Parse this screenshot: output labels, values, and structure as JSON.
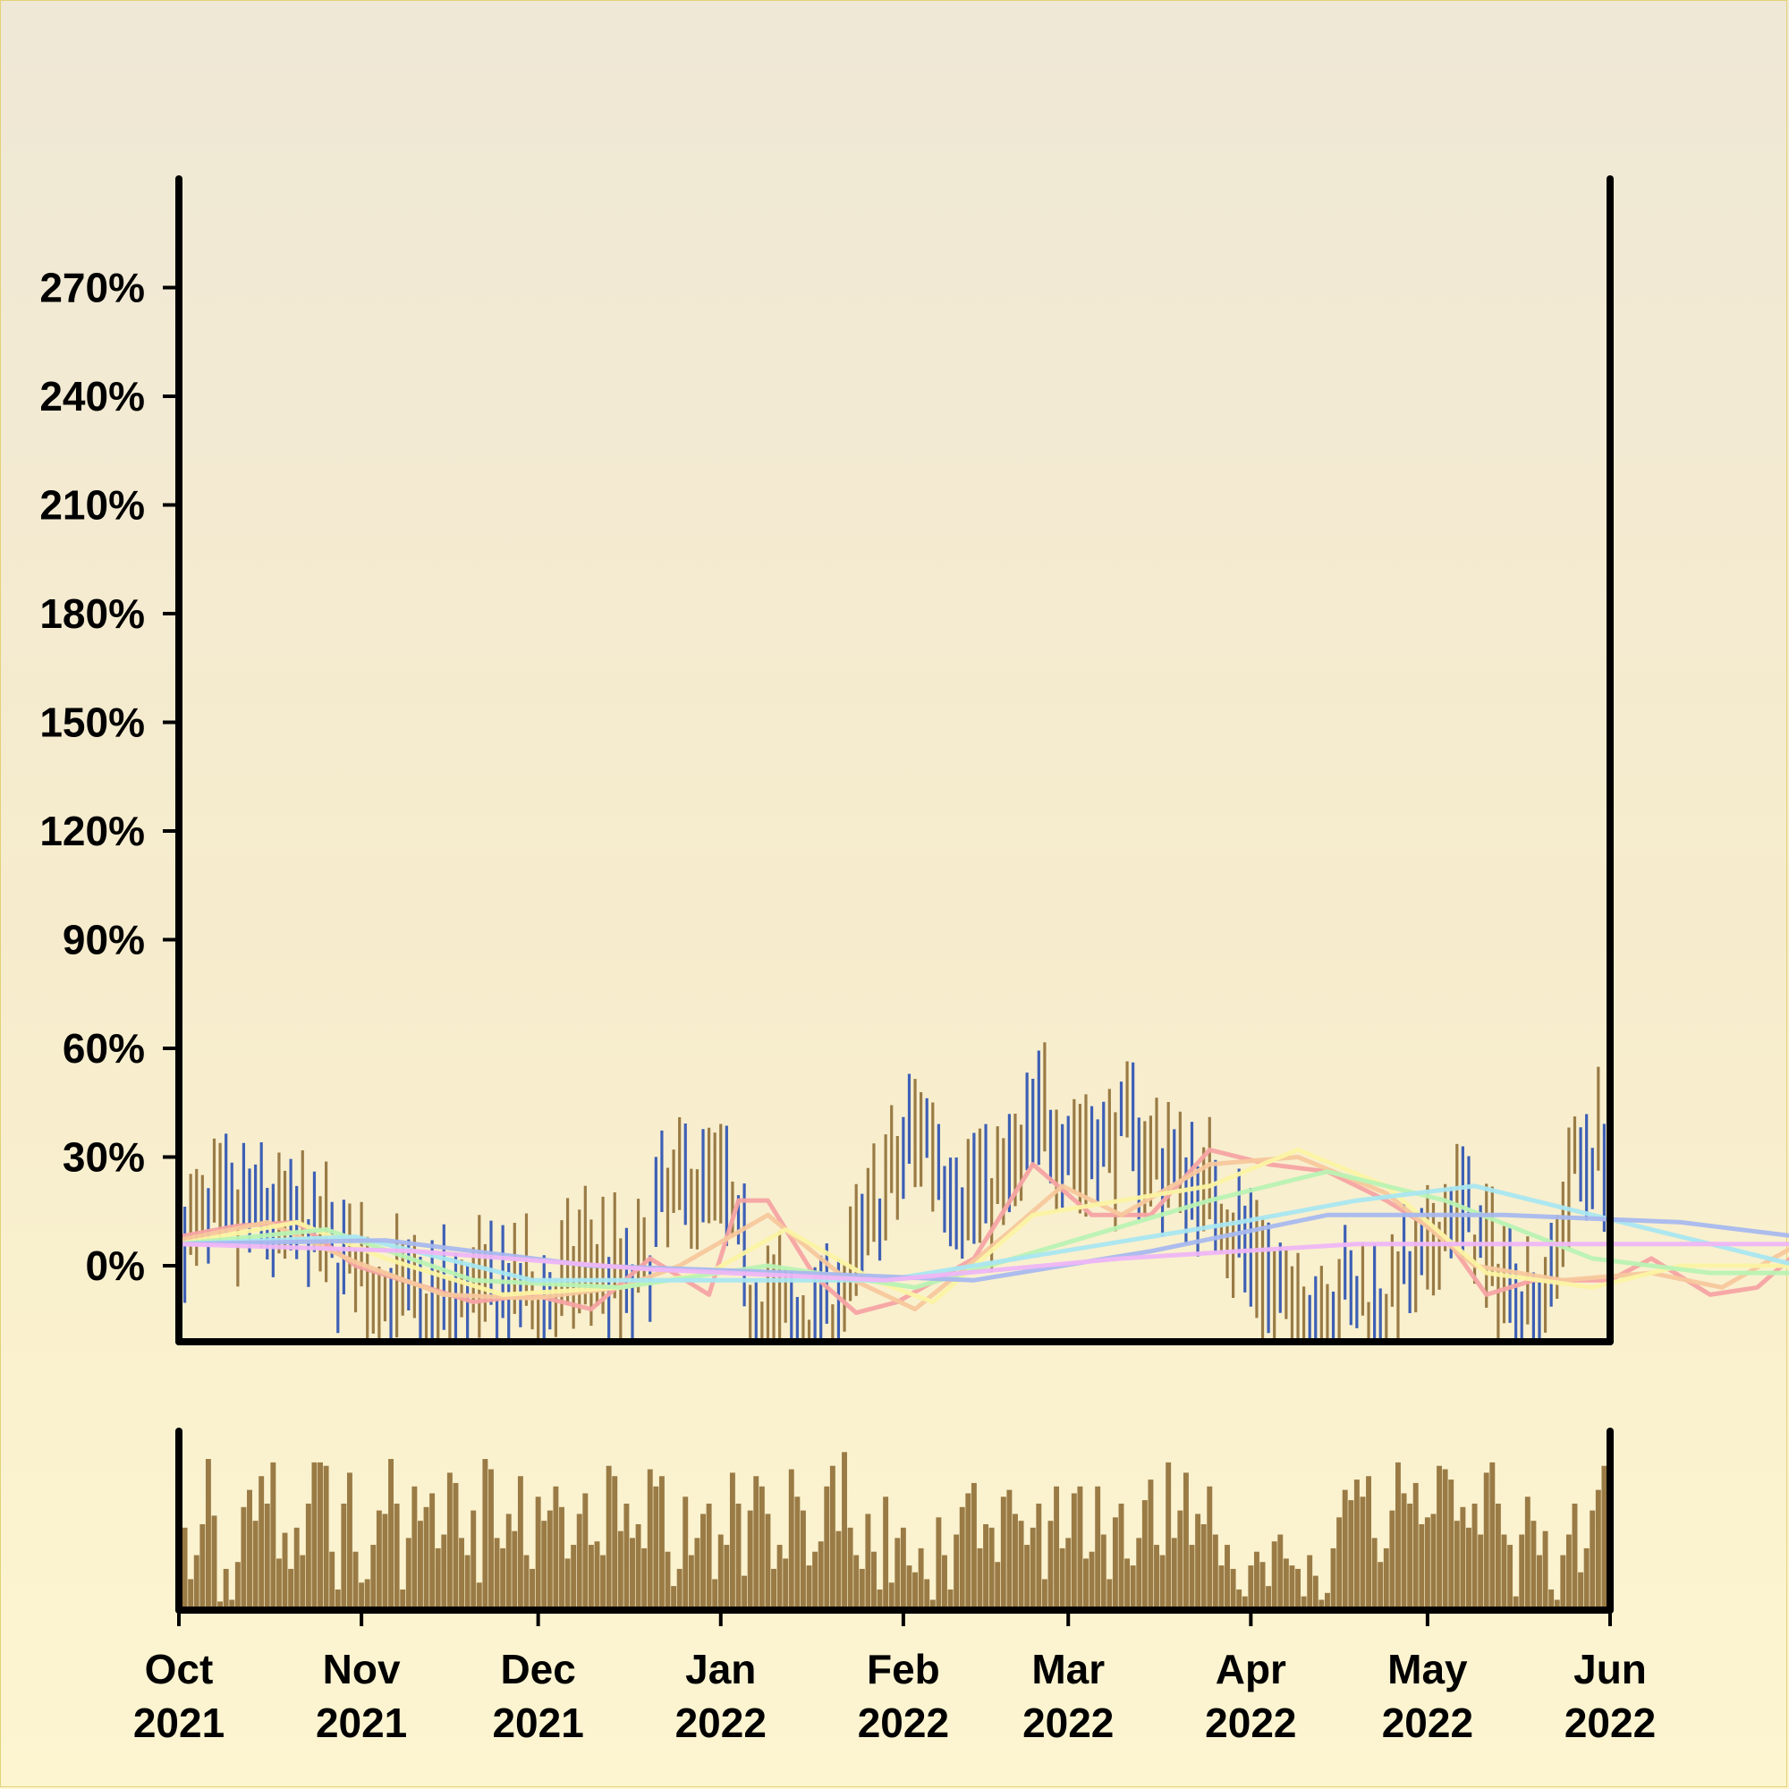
{
  "chart_data": {
    "type": "ohlc",
    "title": "",
    "xlabel": "",
    "ylabel": "",
    "x_start": "2021-10-01",
    "x_end": "2022-06-01",
    "xlim": [
      "2021-10-01",
      "2022-06-01"
    ],
    "ylim": [
      -21,
      300
    ],
    "y_ticks": [
      {
        "value": 0,
        "label": "0%"
      },
      {
        "value": 30,
        "label": "30%"
      },
      {
        "value": 60,
        "label": "60%"
      },
      {
        "value": 90,
        "label": "90%"
      },
      {
        "value": 120,
        "label": "120%"
      },
      {
        "value": 150,
        "label": "150%"
      },
      {
        "value": 180,
        "label": "180%"
      },
      {
        "value": 210,
        "label": "210%"
      },
      {
        "value": 240,
        "label": "240%"
      },
      {
        "value": 270,
        "label": "270%"
      }
    ],
    "x_ticks": [
      {
        "date": "2021-10-01",
        "label": [
          "Oct",
          "2021"
        ]
      },
      {
        "date": "2021-11-01",
        "label": [
          "Nov",
          "2021"
        ]
      },
      {
        "date": "2021-12-01",
        "label": [
          "Dec",
          "2021"
        ]
      },
      {
        "date": "2022-01-01",
        "label": [
          "Jan",
          "2022"
        ]
      },
      {
        "date": "2022-02-01",
        "label": [
          "Feb",
          "2022"
        ]
      },
      {
        "date": "2022-03-01",
        "label": [
          "Mar",
          "2022"
        ]
      },
      {
        "date": "2022-04-01",
        "label": [
          "Apr",
          "2022"
        ]
      },
      {
        "date": "2022-05-01",
        "label": [
          "May",
          "2022"
        ]
      },
      {
        "date": "2022-06-01",
        "label": [
          "Jun",
          "2022"
        ]
      }
    ],
    "grid": false,
    "legend": "none",
    "colors": {
      "up": "#9a7b45",
      "down": "#3d5fb5",
      "volume": "#9a7b45",
      "axis": "#000000",
      "background_top": "#efe8d6",
      "background_bottom": "#fdf5d0"
    },
    "price_close": [
      {
        "date": "2021-10-01",
        "value": 8
      },
      {
        "date": "2021-10-08",
        "value": 12
      },
      {
        "date": "2021-10-15",
        "value": 14
      },
      {
        "date": "2021-10-22",
        "value": 10
      },
      {
        "date": "2021-10-29",
        "value": 2
      },
      {
        "date": "2021-11-05",
        "value": -8
      },
      {
        "date": "2021-11-12",
        "value": -12
      },
      {
        "date": "2021-11-19",
        "value": -9
      },
      {
        "date": "2021-11-26",
        "value": -8
      },
      {
        "date": "2021-12-03",
        "value": -10
      },
      {
        "date": "2021-12-10",
        "value": 2
      },
      {
        "date": "2021-12-17",
        "value": -6
      },
      {
        "date": "2021-12-24",
        "value": 20
      },
      {
        "date": "2021-12-31",
        "value": 24
      },
      {
        "date": "2022-01-07",
        "value": -8
      },
      {
        "date": "2022-01-14",
        "value": -16
      },
      {
        "date": "2022-01-21",
        "value": -10
      },
      {
        "date": "2022-01-28",
        "value": 18
      },
      {
        "date": "2022-02-04",
        "value": 38
      },
      {
        "date": "2022-02-11",
        "value": 20
      },
      {
        "date": "2022-02-18",
        "value": 22
      },
      {
        "date": "2022-02-25",
        "value": 40
      },
      {
        "date": "2022-03-04",
        "value": 32
      },
      {
        "date": "2022-03-11",
        "value": 36
      },
      {
        "date": "2022-03-18",
        "value": 28
      },
      {
        "date": "2022-03-25",
        "value": 20
      },
      {
        "date": "2022-04-01",
        "value": 4
      },
      {
        "date": "2022-04-08",
        "value": -14
      },
      {
        "date": "2022-04-15",
        "value": -8
      },
      {
        "date": "2022-04-22",
        "value": -10
      },
      {
        "date": "2022-04-29",
        "value": -4
      },
      {
        "date": "2022-05-06",
        "value": 16
      },
      {
        "date": "2022-05-13",
        "value": -2
      },
      {
        "date": "2022-05-20",
        "value": -10
      },
      {
        "date": "2022-05-27",
        "value": 30
      },
      {
        "date": "2022-06-01",
        "value": 34
      }
    ],
    "series": [
      {
        "color": "#f5a3a3",
        "points": [
          [
            0,
            8
          ],
          [
            10,
            11
          ],
          [
            20,
            12
          ],
          [
            30,
            0
          ],
          [
            40,
            -5
          ],
          [
            50,
            -10
          ],
          [
            60,
            -8
          ],
          [
            70,
            -12
          ],
          [
            80,
            2
          ],
          [
            90,
            -8
          ],
          [
            95,
            18
          ],
          [
            100,
            18
          ],
          [
            108,
            -3
          ],
          [
            115,
            -13
          ],
          [
            122,
            -10
          ],
          [
            135,
            2
          ],
          [
            145,
            28
          ],
          [
            155,
            14
          ],
          [
            165,
            14
          ],
          [
            175,
            32
          ],
          [
            185,
            28
          ],
          [
            195,
            26
          ],
          [
            205,
            18
          ],
          [
            215,
            8
          ],
          [
            222,
            -8
          ],
          [
            230,
            -4
          ],
          [
            240,
            -4
          ],
          [
            250,
            2
          ],
          [
            260,
            -8
          ],
          [
            268,
            -6
          ],
          [
            275,
            4
          ],
          [
            243,
            -4
          ]
        ]
      },
      {
        "color": "#f7c79c",
        "points": [
          [
            0,
            7
          ],
          [
            15,
            12
          ],
          [
            30,
            1
          ],
          [
            45,
            -8
          ],
          [
            60,
            -9
          ],
          [
            75,
            -6
          ],
          [
            85,
            0
          ],
          [
            100,
            14
          ],
          [
            112,
            -2
          ],
          [
            125,
            -12
          ],
          [
            140,
            8
          ],
          [
            150,
            22
          ],
          [
            160,
            14
          ],
          [
            175,
            28
          ],
          [
            190,
            30
          ],
          [
            205,
            20
          ],
          [
            220,
            0
          ],
          [
            235,
            -4
          ],
          [
            250,
            -2
          ],
          [
            262,
            -6
          ],
          [
            275,
            6
          ]
        ]
      },
      {
        "color": "#fbf3a3",
        "points": [
          [
            0,
            6
          ],
          [
            20,
            12
          ],
          [
            35,
            2
          ],
          [
            55,
            -8
          ],
          [
            75,
            -6
          ],
          [
            90,
            -2
          ],
          [
            103,
            10
          ],
          [
            118,
            -4
          ],
          [
            128,
            -10
          ],
          [
            145,
            14
          ],
          [
            160,
            18
          ],
          [
            175,
            22
          ],
          [
            190,
            32
          ],
          [
            205,
            22
          ],
          [
            222,
            -2
          ],
          [
            240,
            -6
          ],
          [
            255,
            0
          ],
          [
            275,
            0
          ]
        ]
      },
      {
        "color": "#b9f2b3",
        "points": [
          [
            0,
            6
          ],
          [
            25,
            10
          ],
          [
            50,
            -4
          ],
          [
            75,
            -6
          ],
          [
            100,
            0
          ],
          [
            125,
            -6
          ],
          [
            150,
            6
          ],
          [
            175,
            18
          ],
          [
            195,
            26
          ],
          [
            215,
            18
          ],
          [
            240,
            2
          ],
          [
            260,
            -2
          ],
          [
            275,
            -2
          ]
        ]
      },
      {
        "color": "#a9e6f0",
        "points": [
          [
            0,
            6
          ],
          [
            30,
            8
          ],
          [
            60,
            -4
          ],
          [
            90,
            -4
          ],
          [
            120,
            -4
          ],
          [
            150,
            4
          ],
          [
            180,
            12
          ],
          [
            200,
            18
          ],
          [
            220,
            22
          ],
          [
            245,
            12
          ],
          [
            265,
            4
          ],
          [
            275,
            0
          ]
        ]
      },
      {
        "color": "#a8b8ee",
        "points": [
          [
            0,
            6
          ],
          [
            35,
            7
          ],
          [
            70,
            0
          ],
          [
            105,
            -2
          ],
          [
            135,
            -4
          ],
          [
            165,
            4
          ],
          [
            195,
            14
          ],
          [
            225,
            14
          ],
          [
            255,
            12
          ],
          [
            275,
            8
          ]
        ]
      },
      {
        "color": "#eeb6f5",
        "points": [
          [
            0,
            6
          ],
          [
            40,
            4
          ],
          [
            80,
            -1
          ],
          [
            120,
            -4
          ],
          [
            160,
            2
          ],
          [
            200,
            6
          ],
          [
            240,
            6
          ],
          [
            275,
            6
          ]
        ]
      }
    ],
    "volume": {
      "ylim": [
        0,
        1
      ],
      "daily_values": [
        0.48,
        0.18,
        0.32,
        0.5,
        0.88,
        0.55,
        0.05,
        0.24,
        0.06,
        0.28,
        0.6,
        0.7,
        0.52,
        0.78,
        0.62,
        0.86,
        0.3,
        0.45,
        0.24,
        0.48,
        0.32,
        0.62,
        0.86,
        0.86,
        0.84,
        0.34,
        0.12,
        0.62,
        0.8,
        0.34,
        0.16,
        0.18,
        0.38,
        0.58,
        0.56,
        0.88,
        0.62,
        0.12,
        0.42,
        0.72,
        0.52,
        0.6,
        0.68,
        0.36,
        0.44,
        0.8,
        0.74,
        0.42,
        0.32,
        0.58,
        0.16,
        0.88,
        0.82,
        0.42,
        0.36,
        0.56,
        0.46,
        0.78,
        0.32,
        0.24,
        0.66,
        0.52,
        0.58,
        0.72,
        0.6,
        0.3,
        0.38,
        0.56,
        0.68,
        0.38,
        0.4,
        0.32,
        0.84,
        0.78,
        0.46,
        0.62,
        0.42,
        0.5,
        0.36,
        0.82,
        0.72,
        0.78,
        0.34,
        0.14,
        0.24,
        0.66,
        0.32,
        0.42,
        0.56,
        0.62,
        0.18,
        0.44,
        0.38,
        0.8,
        0.62,
        0.2,
        0.58,
        0.78,
        0.72,
        0.56,
        0.24,
        0.38,
        0.3,
        0.82,
        0.66,
        0.58,
        0.26,
        0.34,
        0.4,
        0.72,
        0.84,
        0.46,
        0.92,
        0.48,
        0.32,
        0.24,
        0.56,
        0.34,
        0.12,
        0.66,
        0.16,
        0.42,
        0.48,
        0.26,
        0.22,
        0.36,
        0.18,
        0.06,
        0.54,
        0.32,
        0.12,
        0.44,
        0.6,
        0.68,
        0.74,
        0.36,
        0.5,
        0.48,
        0.28,
        0.66,
        0.7,
        0.56,
        0.52,
        0.38,
        0.48,
        0.62,
        0.18,
        0.52,
        0.72,
        0.36,
        0.42,
        0.68,
        0.72,
        0.3,
        0.34,
        0.72,
        0.44,
        0.18,
        0.54,
        0.62,
        0.3,
        0.26,
        0.42,
        0.64,
        0.76,
        0.38,
        0.32,
        0.86,
        0.42,
        0.58,
        0.8,
        0.38,
        0.56,
        0.5,
        0.72,
        0.44,
        0.26,
        0.38,
        0.24,
        0.12,
        0.08,
        0.26,
        0.34,
        0.28,
        0.14,
        0.4,
        0.44,
        0.3,
        0.26,
        0.24,
        0.08,
        0.32,
        0.2,
        0.06,
        0.1,
        0.36,
        0.54,
        0.7,
        0.64,
        0.76,
        0.66,
        0.78,
        0.42,
        0.28,
        0.36,
        0.58,
        0.86,
        0.68,
        0.62,
        0.74,
        0.5,
        0.54,
        0.56,
        0.84,
        0.82,
        0.76,
        0.52,
        0.6,
        0.48,
        0.62,
        0.44,
        0.8,
        0.86,
        0.62,
        0.44,
        0.38,
        0.08,
        0.44,
        0.66,
        0.52,
        0.32,
        0.46,
        0.12,
        0.06,
        0.32,
        0.44,
        0.62,
        0.22,
        0.36,
        0.58,
        0.7,
        0.84,
        0.54,
        0.42,
        0.62,
        0.86,
        0.66,
        0.58,
        0.46,
        0.8,
        0.62,
        0.5,
        0.72,
        0.56,
        0.52,
        0.24,
        0.18,
        0.34,
        0.46,
        0.58,
        0.36,
        0.28,
        0.66,
        0.6,
        0.62,
        0.68,
        0.12,
        0.24,
        0.44,
        0.52,
        0.68,
        0.24,
        0.62
      ]
    }
  }
}
